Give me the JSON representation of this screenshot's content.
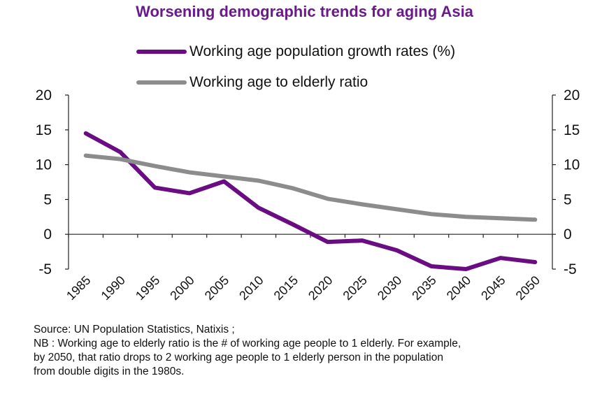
{
  "title": "Worsening demographic trends for aging Asia",
  "legend": [
    {
      "label": "Working age population growth rates  (%)",
      "color": "#6a0d83"
    },
    {
      "label": "Working age to elderly ratio",
      "color": "#8c8c8c"
    }
  ],
  "notes": [
    "Source: UN Population Statistics, Natixis ;",
    "NB : Working age to elderly ratio is the # of working age people to 1 elderly. For example,",
    "by 2050, that ratio drops to 2 working age people to 1 elderly person in the population",
    "from double digits in the 1980s."
  ],
  "chart_data": {
    "type": "line",
    "x": [
      "1985",
      "1990",
      "1995",
      "2000",
      "2005",
      "2010",
      "2015",
      "2020",
      "2025",
      "2030",
      "2035",
      "2040",
      "2045",
      "2050"
    ],
    "series": [
      {
        "name": "Working age population growth rates  (%)",
        "color": "#6a0d83",
        "values": [
          14.5,
          11.8,
          6.7,
          5.9,
          7.6,
          3.8,
          1.4,
          -1.1,
          -0.9,
          -2.3,
          -4.6,
          -5.0,
          -3.4,
          -4.0
        ]
      },
      {
        "name": "Working age to elderly ratio",
        "color": "#8c8c8c",
        "values": [
          11.3,
          10.8,
          9.8,
          8.9,
          8.3,
          7.7,
          6.6,
          5.1,
          4.3,
          3.6,
          2.9,
          2.5,
          2.3,
          2.1
        ]
      }
    ],
    "ylim": [
      -5,
      20
    ],
    "yticks": [
      "20",
      "15",
      "10",
      "5",
      "0",
      "-5"
    ],
    "yticks_right": [
      "20",
      "15",
      "10",
      "5",
      "0",
      "-5"
    ],
    "grid": false,
    "legend_position": "top"
  }
}
